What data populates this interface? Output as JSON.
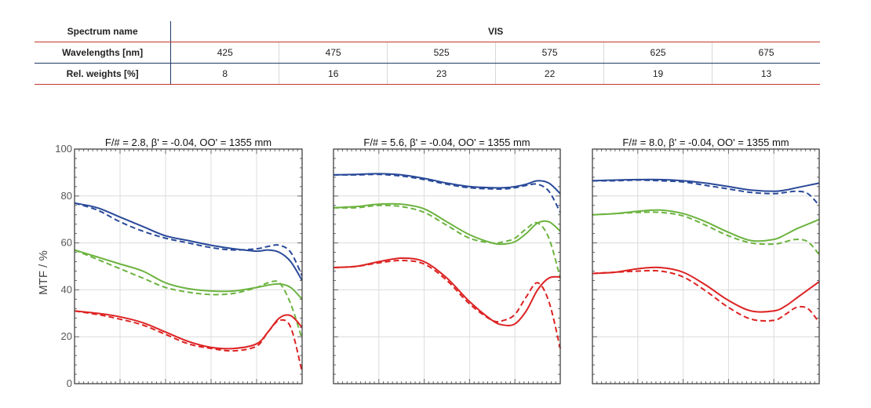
{
  "table": {
    "spectrum_label": "Spectrum name",
    "spectrum_value": "VIS",
    "wavelength_label": "Wavelengths [nm]",
    "wavelengths": [
      "425",
      "475",
      "525",
      "575",
      "625",
      "675"
    ],
    "weights_label": "Rel. weights [%]",
    "weights": [
      "8",
      "16",
      "23",
      "22",
      "19",
      "13"
    ]
  },
  "colors": {
    "blue": "#2a4a99",
    "green": "#6cb33f",
    "red": "#dd2222"
  },
  "chart_data": [
    {
      "type": "line",
      "title": "F/# = 2.8, β' = -0.04, OO' = 1355 mm",
      "ylabel": "MTF / %",
      "ylim": [
        0,
        100
      ],
      "y_ticks": [
        "0",
        "20",
        "40",
        "60",
        "80",
        "100"
      ],
      "x": [
        0,
        0.1,
        0.2,
        0.3,
        0.4,
        0.5,
        0.6,
        0.7,
        0.8,
        0.85,
        0.9,
        0.95,
        1.0
      ],
      "series": [
        {
          "color": "blue",
          "style": "solid",
          "values": [
            77,
            75,
            71,
            67,
            63,
            61,
            59,
            57.5,
            56.5,
            57,
            56,
            52,
            44
          ]
        },
        {
          "color": "blue",
          "style": "dashed",
          "values": [
            77,
            74,
            69,
            65,
            62,
            60,
            58,
            57,
            57.5,
            58.5,
            59,
            56,
            46
          ]
        },
        {
          "color": "green",
          "style": "solid",
          "values": [
            57,
            54,
            51,
            48,
            43,
            40.5,
            39.5,
            39.5,
            41,
            42,
            42.5,
            41,
            36
          ]
        },
        {
          "color": "green",
          "style": "dashed",
          "values": [
            57,
            53,
            49,
            45,
            41,
            39,
            38,
            38.5,
            41,
            43,
            43,
            34,
            19
          ]
        },
        {
          "color": "red",
          "style": "solid",
          "values": [
            31,
            30,
            28.5,
            26,
            22,
            18,
            15.5,
            15,
            17,
            22,
            28,
            29,
            24
          ]
        },
        {
          "color": "red",
          "style": "dashed",
          "values": [
            31,
            29.5,
            27.5,
            25,
            21,
            17,
            15,
            14,
            16,
            22,
            27,
            24,
            5
          ]
        }
      ]
    },
    {
      "type": "line",
      "title": "F/# = 5.6, β' = -0.04, OO' = 1355 mm",
      "ylim": [
        0,
        100
      ],
      "x": [
        0,
        0.1,
        0.2,
        0.3,
        0.4,
        0.5,
        0.6,
        0.7,
        0.75,
        0.8,
        0.85,
        0.9,
        0.95,
        1.0
      ],
      "series": [
        {
          "color": "blue",
          "style": "solid",
          "values": [
            89,
            89.2,
            89.5,
            89,
            87.5,
            85.5,
            84,
            83.5,
            83.5,
            84,
            85,
            86.5,
            85.5,
            81
          ]
        },
        {
          "color": "blue",
          "style": "dashed",
          "values": [
            89,
            89,
            89.2,
            88.5,
            87,
            85,
            83.5,
            83,
            83,
            83.5,
            84.5,
            85,
            82,
            73
          ]
        },
        {
          "color": "green",
          "style": "solid",
          "values": [
            75,
            75.5,
            76.5,
            76.5,
            74.5,
            69,
            63.5,
            60,
            59.5,
            60.5,
            64,
            68.5,
            69,
            65
          ]
        },
        {
          "color": "green",
          "style": "dashed",
          "values": [
            75,
            75,
            76,
            75.5,
            73,
            67.5,
            62,
            60,
            60.5,
            62,
            66,
            68.5,
            62,
            45
          ]
        },
        {
          "color": "red",
          "style": "solid",
          "values": [
            49.5,
            50,
            52,
            53.5,
            52,
            45,
            35,
            27,
            25,
            25.5,
            31,
            40,
            45,
            45.5
          ]
        },
        {
          "color": "red",
          "style": "dashed",
          "values": [
            49.5,
            50,
            51.5,
            52.5,
            51,
            44,
            34,
            27,
            27,
            29.5,
            37,
            43,
            35,
            15
          ]
        }
      ]
    },
    {
      "type": "line",
      "title": "F/# = 8.0, β' = -0.04, OO' = 1355 mm",
      "ylim": [
        0,
        100
      ],
      "x": [
        0,
        0.1,
        0.2,
        0.3,
        0.4,
        0.5,
        0.6,
        0.7,
        0.8,
        0.85,
        0.9,
        0.95,
        1.0
      ],
      "series": [
        {
          "color": "blue",
          "style": "solid",
          "values": [
            86.5,
            86.8,
            87,
            87,
            86.5,
            85.5,
            84,
            82.5,
            82,
            82.5,
            83.5,
            84.5,
            85.5
          ]
        },
        {
          "color": "blue",
          "style": "dashed",
          "values": [
            86.5,
            86.5,
            86.8,
            86.5,
            86,
            84.5,
            83,
            81.5,
            81,
            81.5,
            82,
            81,
            76
          ]
        },
        {
          "color": "green",
          "style": "solid",
          "values": [
            72,
            72.5,
            73.5,
            74,
            72.5,
            69,
            64.5,
            61,
            61.5,
            63.5,
            66,
            68,
            70
          ]
        },
        {
          "color": "green",
          "style": "dashed",
          "values": [
            72,
            72.5,
            73,
            73,
            71.5,
            67.5,
            63,
            60,
            59.5,
            60.5,
            61.5,
            60.5,
            55
          ]
        },
        {
          "color": "red",
          "style": "solid",
          "values": [
            47,
            47.5,
            49,
            49.5,
            47.5,
            42,
            35.5,
            31,
            31,
            33,
            36.5,
            40,
            43.5
          ]
        },
        {
          "color": "red",
          "style": "dashed",
          "values": [
            47,
            47.5,
            48,
            48,
            45.5,
            39.5,
            32.5,
            27.5,
            27,
            29.5,
            32.5,
            32,
            26
          ]
        }
      ]
    }
  ]
}
